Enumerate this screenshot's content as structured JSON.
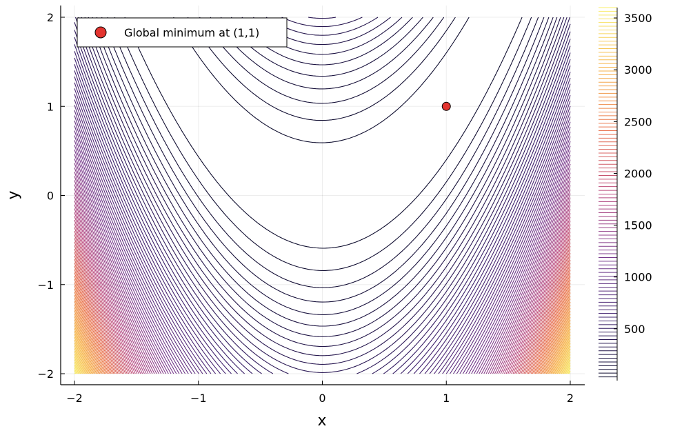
{
  "chart_data": {
    "type": "contour",
    "function": "rosenbrock",
    "title": "",
    "xlabel": "x",
    "ylabel": "y",
    "xlim": [
      -2,
      2
    ],
    "ylim": [
      -2,
      2
    ],
    "xticks": [
      -2,
      -1,
      0,
      1,
      2
    ],
    "yticks": [
      -2,
      -1,
      0,
      1,
      2
    ],
    "xtick_labels": [
      "−2",
      "−1",
      "0",
      "1",
      "2"
    ],
    "ytick_labels": [
      "−2",
      "−1",
      "0",
      "1",
      "2"
    ],
    "grid": true,
    "colorbar": {
      "min": 0,
      "max": 3600,
      "ticks": [
        500,
        1000,
        1500,
        2000,
        2500,
        3000,
        3500
      ],
      "tick_labels": [
        "500",
        "1000",
        "1500",
        "2000",
        "2500",
        "3000",
        "3500"
      ],
      "colormap": [
        "#0b0c2a",
        "#3b1f6b",
        "#7a3b8f",
        "#b8487f",
        "#e8704e",
        "#f6b24a",
        "#f8ef6a"
      ]
    },
    "contour_levels": {
      "count": 100,
      "start": 0,
      "end": 3600
    },
    "points": [
      {
        "x": 1,
        "y": 1,
        "color": "#e3342f"
      }
    ],
    "legend": {
      "position": "top-left",
      "entries": [
        {
          "label": "Global minimum at (1,1)",
          "marker": "circle",
          "color": "#e3342f"
        }
      ]
    }
  }
}
